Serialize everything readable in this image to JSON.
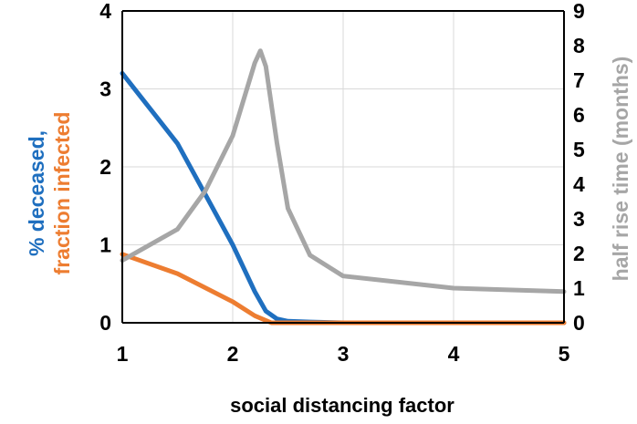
{
  "chart_data": {
    "type": "line",
    "xlabel": "social distancing factor",
    "ylabel_left": [
      "% deceased,",
      "fraction infected"
    ],
    "ylabel_right": "half rise time (months)",
    "xlim": [
      1,
      5
    ],
    "ylim_left": [
      0,
      4
    ],
    "ylim_right": [
      0,
      9
    ],
    "x_ticks": [
      1,
      2,
      3,
      4,
      5
    ],
    "y_left_ticks": [
      0,
      1,
      2,
      3,
      4
    ],
    "y_right_ticks": [
      0,
      1,
      2,
      3,
      4,
      5,
      6,
      7,
      8,
      9
    ],
    "grid": true,
    "colors": {
      "deceased": "#1f6fbf",
      "infected": "#ed7d31",
      "half_rise": "#a6a6a6",
      "ylabel_deceased": "#1f6fbf",
      "ylabel_infected": "#ed7d31",
      "ylabel_right": "#a6a6a6"
    },
    "series": [
      {
        "key": "deceased",
        "axis": "left",
        "x": [
          1,
          1.5,
          1.75,
          2,
          2.2,
          2.3,
          2.4,
          2.5,
          2.7,
          3,
          5
        ],
        "values": [
          3.2,
          2.3,
          1.65,
          1.0,
          0.4,
          0.15,
          0.05,
          0.02,
          0.01,
          0.0,
          0.0
        ]
      },
      {
        "key": "infected",
        "axis": "left",
        "x": [
          1,
          1.5,
          2,
          2.2,
          2.35,
          2.5,
          3,
          5
        ],
        "values": [
          0.88,
          0.63,
          0.27,
          0.09,
          0.0,
          0.0,
          0.0,
          0.0
        ]
      },
      {
        "key": "half_rise",
        "axis": "right",
        "x": [
          1,
          1.5,
          1.75,
          2,
          2.2,
          2.25,
          2.3,
          2.4,
          2.5,
          2.7,
          3,
          4,
          5
        ],
        "values": [
          1.8,
          2.7,
          3.8,
          5.4,
          7.5,
          7.85,
          7.4,
          5.2,
          3.3,
          1.95,
          1.35,
          1.0,
          0.9
        ]
      }
    ]
  }
}
